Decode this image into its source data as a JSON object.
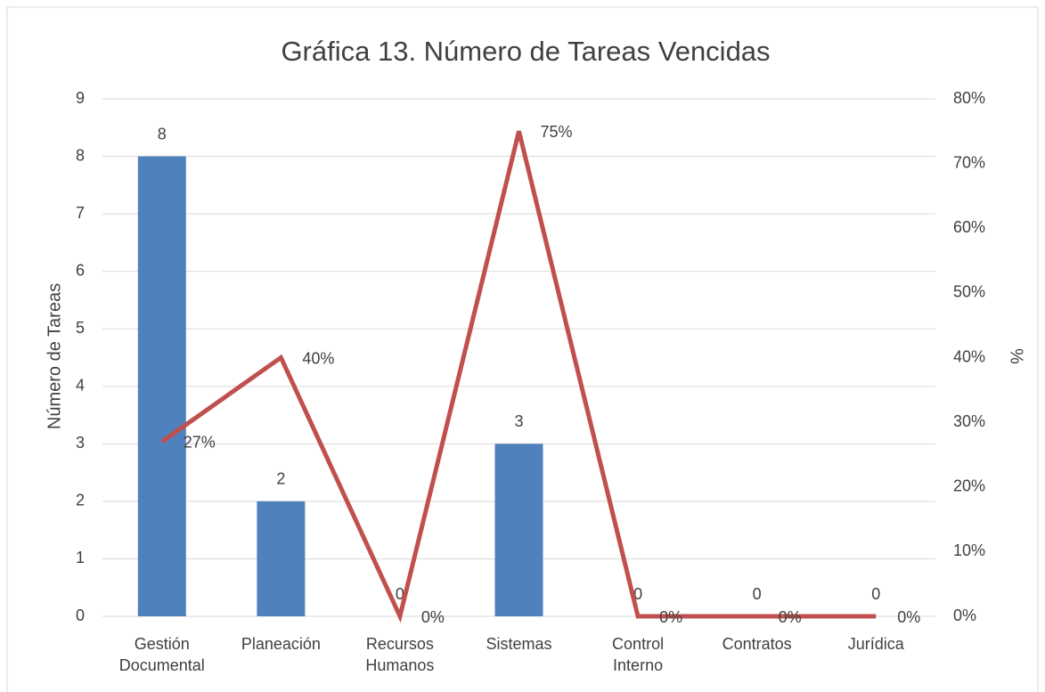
{
  "chart_data": {
    "type": "combo",
    "title": "Gráfica 13. Número de Tareas Vencidas",
    "ylabel": "Número de Tareas",
    "y2label": "%",
    "categories": [
      "Gestión Documental",
      "Planeación",
      "Recursos Humanos",
      "Sistemas",
      "Control Interno",
      "Contratos",
      "Jurídica"
    ],
    "series": [
      {
        "type": "bar",
        "color": "#4f81bd",
        "values": [
          8,
          2,
          0,
          3,
          0,
          0,
          0
        ]
      },
      {
        "type": "line",
        "axis": "y2",
        "color": "#c0504d",
        "values": [
          27,
          40,
          0,
          75,
          0,
          0,
          0
        ],
        "value_labels": [
          "27%",
          "40%",
          "0%",
          "75%",
          "0%",
          "0%",
          "0%"
        ]
      }
    ],
    "ylim": [
      0,
      9
    ],
    "yticks": [
      0,
      1,
      2,
      3,
      4,
      5,
      6,
      7,
      8,
      9
    ],
    "y2lim": [
      0,
      80
    ],
    "y2ticks": [
      {
        "value": 0,
        "label": "0%"
      },
      {
        "value": 10,
        "label": "10%"
      },
      {
        "value": 20,
        "label": "20%"
      },
      {
        "value": 30,
        "label": "30%"
      },
      {
        "value": 40,
        "label": "40%"
      },
      {
        "value": 50,
        "label": "50%"
      },
      {
        "value": 60,
        "label": "60%"
      },
      {
        "value": 70,
        "label": "70%"
      },
      {
        "value": 80,
        "label": "80%"
      }
    ],
    "grid": true
  }
}
